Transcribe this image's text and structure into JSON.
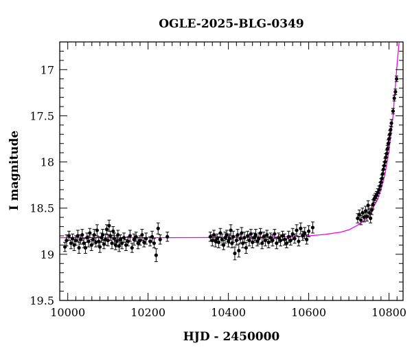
{
  "chart_data": {
    "type": "scatter",
    "title": "OGLE-2025-BLG-0349",
    "xlabel": "HJD - 2450000",
    "ylabel": "I magnitude",
    "xlim": [
      9980,
      10835
    ],
    "ylim": [
      19.5,
      16.7
    ],
    "y_inverted": true,
    "x_ticks": [
      10000,
      10200,
      10400,
      10600,
      10800
    ],
    "x_tick_labels": [
      "10000",
      "10200",
      "10400",
      "10600",
      "10800"
    ],
    "y_ticks": [
      17,
      17.5,
      18,
      18.5,
      19,
      19.5
    ],
    "y_tick_labels": [
      "17",
      "17.5",
      "18",
      "18.5",
      "19",
      "19.5"
    ],
    "grid": false,
    "legend": "none",
    "colors": {
      "points": "#000000",
      "model": "#ee00ee",
      "frame": "#000000"
    },
    "model_curve": {
      "name": "",
      "baseline": 18.82,
      "points": [
        [
          9980,
          18.82
        ],
        [
          10200,
          18.82
        ],
        [
          10400,
          18.818
        ],
        [
          10500,
          18.815
        ],
        [
          10550,
          18.81
        ],
        [
          10600,
          18.8
        ],
        [
          10640,
          18.785
        ],
        [
          10680,
          18.76
        ],
        [
          10700,
          18.735
        ],
        [
          10720,
          18.69
        ],
        [
          10740,
          18.63
        ],
        [
          10750,
          18.58
        ],
        [
          10760,
          18.5
        ],
        [
          10770,
          18.42
        ],
        [
          10780,
          18.3
        ],
        [
          10790,
          18.13
        ],
        [
          10800,
          17.88
        ],
        [
          10810,
          17.5
        ],
        [
          10815,
          17.22
        ],
        [
          10820,
          16.95
        ],
        [
          10825,
          16.7
        ]
      ]
    },
    "series": [
      {
        "name": "",
        "points": [
          [
            9993,
            18.92,
            0.05
          ],
          [
            9997,
            18.85,
            0.06
          ],
          [
            10003,
            18.8,
            0.05
          ],
          [
            10008,
            18.88,
            0.06
          ],
          [
            10012,
            18.83,
            0.05
          ],
          [
            10016,
            18.9,
            0.06
          ],
          [
            10020,
            18.85,
            0.05
          ],
          [
            10025,
            18.8,
            0.06
          ],
          [
            10028,
            18.93,
            0.06
          ],
          [
            10032,
            18.84,
            0.05
          ],
          [
            10036,
            18.79,
            0.06
          ],
          [
            10040,
            18.88,
            0.05
          ],
          [
            10044,
            18.93,
            0.06
          ],
          [
            10048,
            18.82,
            0.05
          ],
          [
            10052,
            18.86,
            0.06
          ],
          [
            10055,
            18.77,
            0.05
          ],
          [
            10059,
            18.9,
            0.06
          ],
          [
            10063,
            18.84,
            0.05
          ],
          [
            10066,
            18.79,
            0.06
          ],
          [
            10070,
            18.87,
            0.05
          ],
          [
            10073,
            18.74,
            0.06
          ],
          [
            10077,
            18.86,
            0.05
          ],
          [
            10080,
            18.92,
            0.06
          ],
          [
            10084,
            18.82,
            0.05
          ],
          [
            10087,
            18.79,
            0.06
          ],
          [
            10090,
            18.89,
            0.05
          ],
          [
            10094,
            18.84,
            0.06
          ],
          [
            10097,
            18.73,
            0.05
          ],
          [
            10100,
            18.85,
            0.06
          ],
          [
            10103,
            18.69,
            0.06
          ],
          [
            10106,
            18.8,
            0.05
          ],
          [
            10110,
            18.88,
            0.06
          ],
          [
            10113,
            18.75,
            0.05
          ],
          [
            10116,
            18.83,
            0.06
          ],
          [
            10119,
            18.9,
            0.05
          ],
          [
            10122,
            18.86,
            0.06
          ],
          [
            10125,
            18.79,
            0.05
          ],
          [
            10128,
            18.91,
            0.06
          ],
          [
            10131,
            18.84,
            0.05
          ],
          [
            10135,
            18.88,
            0.06
          ],
          [
            10140,
            18.82,
            0.05
          ],
          [
            10145,
            18.9,
            0.06
          ],
          [
            10150,
            18.86,
            0.05
          ],
          [
            10155,
            18.8,
            0.06
          ],
          [
            10160,
            18.93,
            0.05
          ],
          [
            10165,
            18.84,
            0.06
          ],
          [
            10170,
            18.81,
            0.05
          ],
          [
            10175,
            18.88,
            0.06
          ],
          [
            10180,
            18.85,
            0.05
          ],
          [
            10185,
            18.79,
            0.06
          ],
          [
            10190,
            18.87,
            0.05
          ],
          [
            10195,
            18.83,
            0.06
          ],
          [
            10205,
            18.86,
            0.05
          ],
          [
            10210,
            18.81,
            0.06
          ],
          [
            10215,
            18.88,
            0.05
          ],
          [
            10220,
            19.01,
            0.07
          ],
          [
            10225,
            18.72,
            0.06
          ],
          [
            10230,
            18.84,
            0.05
          ],
          [
            10248,
            18.81,
            0.05
          ],
          [
            10355,
            18.81,
            0.05
          ],
          [
            10360,
            18.85,
            0.06
          ],
          [
            10364,
            18.79,
            0.05
          ],
          [
            10368,
            18.86,
            0.06
          ],
          [
            10372,
            18.83,
            0.05
          ],
          [
            10376,
            18.87,
            0.06
          ],
          [
            10380,
            18.77,
            0.05
          ],
          [
            10384,
            18.84,
            0.06
          ],
          [
            10388,
            18.9,
            0.05
          ],
          [
            10392,
            18.82,
            0.06
          ],
          [
            10396,
            18.79,
            0.05
          ],
          [
            10400,
            18.86,
            0.06
          ],
          [
            10403,
            18.83,
            0.05
          ],
          [
            10406,
            18.74,
            0.06
          ],
          [
            10409,
            18.88,
            0.05
          ],
          [
            10412,
            18.81,
            0.06
          ],
          [
            10416,
            18.99,
            0.07
          ],
          [
            10420,
            18.85,
            0.05
          ],
          [
            10423,
            18.79,
            0.06
          ],
          [
            10426,
            18.96,
            0.07
          ],
          [
            10430,
            18.83,
            0.05
          ],
          [
            10433,
            18.77,
            0.06
          ],
          [
            10436,
            18.88,
            0.05
          ],
          [
            10440,
            18.82,
            0.06
          ],
          [
            10444,
            18.93,
            0.06
          ],
          [
            10448,
            18.8,
            0.05
          ],
          [
            10452,
            18.85,
            0.06
          ],
          [
            10456,
            18.78,
            0.05
          ],
          [
            10460,
            18.87,
            0.06
          ],
          [
            10464,
            18.82,
            0.05
          ],
          [
            10468,
            18.79,
            0.06
          ],
          [
            10472,
            18.86,
            0.05
          ],
          [
            10476,
            18.83,
            0.06
          ],
          [
            10480,
            18.77,
            0.05
          ],
          [
            10484,
            18.88,
            0.06
          ],
          [
            10488,
            18.81,
            0.05
          ],
          [
            10492,
            18.85,
            0.06
          ],
          [
            10496,
            18.79,
            0.05
          ],
          [
            10500,
            18.87,
            0.06
          ],
          [
            10505,
            18.82,
            0.05
          ],
          [
            10510,
            18.85,
            0.06
          ],
          [
            10515,
            18.78,
            0.05
          ],
          [
            10520,
            18.88,
            0.06
          ],
          [
            10525,
            18.82,
            0.05
          ],
          [
            10530,
            18.85,
            0.06
          ],
          [
            10535,
            18.8,
            0.05
          ],
          [
            10540,
            18.84,
            0.06
          ],
          [
            10545,
            18.88,
            0.05
          ],
          [
            10550,
            18.81,
            0.06
          ],
          [
            10555,
            18.85,
            0.05
          ],
          [
            10560,
            18.78,
            0.06
          ],
          [
            10565,
            18.83,
            0.05
          ],
          [
            10570,
            18.74,
            0.06
          ],
          [
            10575,
            18.86,
            0.05
          ],
          [
            10580,
            18.72,
            0.06
          ],
          [
            10585,
            18.8,
            0.05
          ],
          [
            10590,
            18.77,
            0.06
          ],
          [
            10595,
            18.84,
            0.05
          ],
          [
            10600,
            18.75,
            0.06
          ],
          [
            10610,
            18.71,
            0.06
          ],
          [
            10722,
            18.61,
            0.05
          ],
          [
            10726,
            18.57,
            0.05
          ],
          [
            10730,
            18.63,
            0.05
          ],
          [
            10734,
            18.55,
            0.05
          ],
          [
            10738,
            18.6,
            0.05
          ],
          [
            10742,
            18.53,
            0.05
          ],
          [
            10745,
            18.59,
            0.05
          ],
          [
            10748,
            18.47,
            0.05
          ],
          [
            10751,
            18.55,
            0.05
          ],
          [
            10754,
            18.61,
            0.05
          ],
          [
            10757,
            18.52,
            0.05
          ],
          [
            10760,
            18.46,
            0.05
          ],
          [
            10763,
            18.4,
            0.04
          ],
          [
            10766,
            18.38,
            0.04
          ],
          [
            10769,
            18.36,
            0.04
          ],
          [
            10772,
            18.33,
            0.04
          ],
          [
            10775,
            18.3,
            0.04
          ],
          [
            10778,
            18.26,
            0.04
          ],
          [
            10780,
            18.22,
            0.04
          ],
          [
            10782,
            18.18,
            0.04
          ],
          [
            10784,
            18.13,
            0.04
          ],
          [
            10786,
            18.08,
            0.04
          ],
          [
            10788,
            18.04,
            0.04
          ],
          [
            10790,
            18.0,
            0.04
          ],
          [
            10792,
            17.95,
            0.04
          ],
          [
            10794,
            17.91,
            0.04
          ],
          [
            10796,
            17.86,
            0.04
          ],
          [
            10798,
            17.8,
            0.04
          ],
          [
            10800,
            17.75,
            0.04
          ],
          [
            10802,
            17.7,
            0.04
          ],
          [
            10804,
            17.65,
            0.04
          ],
          [
            10806,
            17.58,
            0.04
          ],
          [
            10810,
            17.45,
            0.03
          ],
          [
            10813,
            17.31,
            0.03
          ],
          [
            10816,
            17.24,
            0.03
          ],
          [
            10819,
            17.1,
            0.03
          ]
        ]
      }
    ]
  }
}
